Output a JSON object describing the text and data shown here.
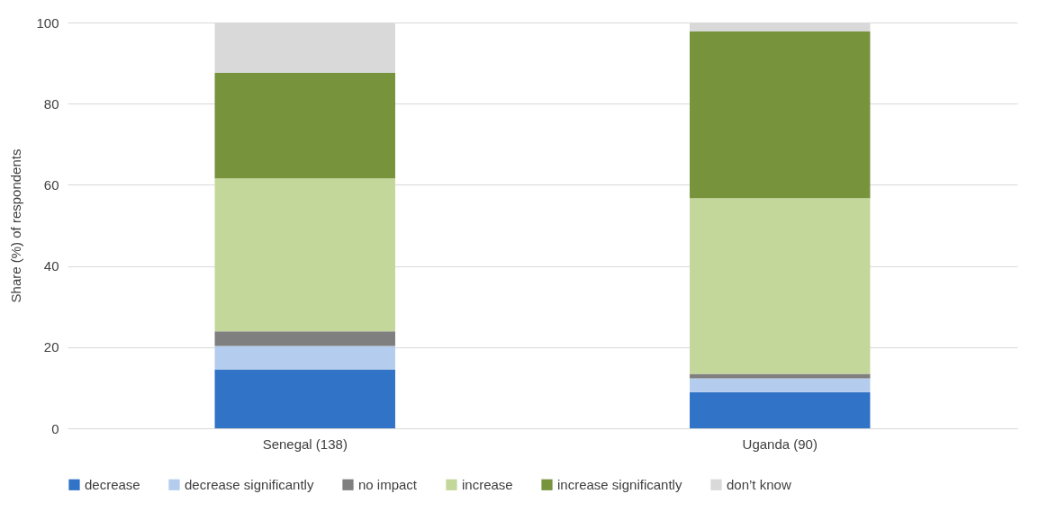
{
  "chart_data": {
    "type": "bar",
    "stacked": true,
    "ylabel": "Share (%) of respondents",
    "categories": [
      "Senegal (138)",
      "Uganda (90)"
    ],
    "series": [
      {
        "name": "decrease",
        "color": "#3173c6",
        "values": [
          14.5,
          8.9
        ]
      },
      {
        "name": "decrease significantly",
        "color": "#b4cdee",
        "values": [
          5.8,
          3.4
        ]
      },
      {
        "name": "no impact",
        "color": "#7f7f7f",
        "values": [
          3.6,
          1.1
        ]
      },
      {
        "name": "increase",
        "color": "#c4d79b",
        "values": [
          37.7,
          43.3
        ]
      },
      {
        "name": "increase significantly",
        "color": "#77933c",
        "values": [
          26.0,
          41.1
        ]
      },
      {
        "name": "don’t know",
        "color": "#d9d9d9",
        "values": [
          12.4,
          2.2
        ]
      }
    ],
    "ylim": [
      0,
      100
    ],
    "yticks": [
      0,
      20,
      40,
      60,
      80,
      100
    ],
    "grid": "y",
    "legend": "bottom"
  }
}
